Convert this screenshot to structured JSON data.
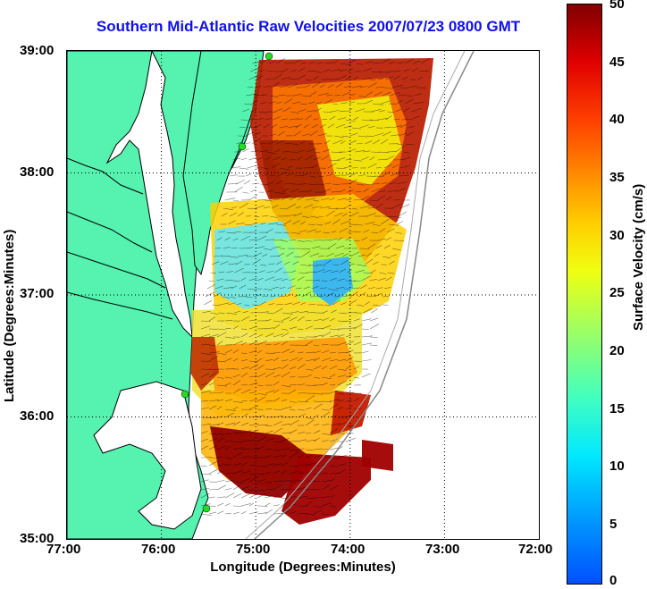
{
  "title": "Southern Mid-Atlantic Raw Velocities 2007/07/23 0800 GMT",
  "xlabel": "Longitude (Degrees:Minutes)",
  "ylabel": "Latitude (Degrees:Minutes)",
  "x_ticks": [
    "77:00",
    "76:00",
    "75:00",
    "74:00",
    "73:00",
    "72:00"
  ],
  "y_ticks": [
    "39:00",
    "38:00",
    "37:00",
    "36:00",
    "35:00"
  ],
  "colorbar": {
    "label": "Surface Velocity (cm/s)",
    "ticks": [
      "50",
      "45",
      "40",
      "35",
      "30",
      "25",
      "20",
      "15",
      "10",
      "5",
      "0"
    ],
    "range": [
      0,
      50
    ],
    "colormap": "jet"
  },
  "colors": {
    "land": "#55f2b0",
    "title": "#1010ee",
    "coast_line": "#000000",
    "station": "#22dd22"
  },
  "map": {
    "lon_range": [
      -77,
      -72
    ],
    "lat_range": [
      35,
      39
    ],
    "grid": true
  }
}
